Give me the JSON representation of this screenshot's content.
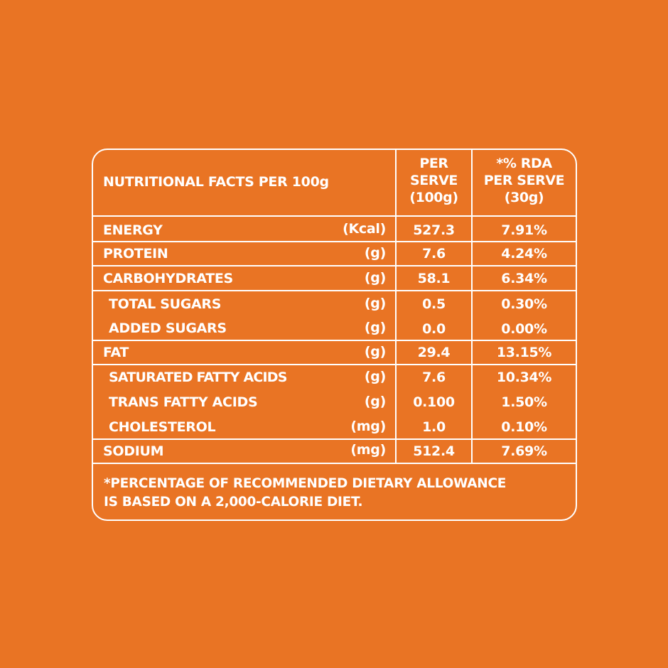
{
  "panel": {
    "header": {
      "title": "NUTRITIONAL FACTS PER 100g",
      "col_serve": [
        "PER",
        "SERVE",
        "(100g)"
      ],
      "col_rda": [
        "*% RDA",
        "PER SERVE",
        "(30g)"
      ]
    },
    "rows": [
      {
        "name": "ENERGY",
        "unit": "(Kcal)",
        "value": "527.3",
        "rda": "7.91%"
      },
      {
        "name": "PROTEIN",
        "unit": "(g)",
        "value": "7.6",
        "rda": "4.24%"
      },
      {
        "name": "CARBOHYDRATES",
        "unit": "(g)",
        "value": "58.1",
        "rda": "6.34%"
      },
      {
        "name": "TOTAL SUGARS",
        "unit": "(g)",
        "value": "0.5",
        "rda": "0.30%"
      },
      {
        "name": "ADDED SUGARS",
        "unit": "(g)",
        "value": "0.0",
        "rda": "0.00%"
      },
      {
        "name": "FAT",
        "unit": "(g)",
        "value": "29.4",
        "rda": "13.15%"
      },
      {
        "name": "SATURATED FATTY ACIDS",
        "unit": "(g)",
        "value": "7.6",
        "rda": "10.34%"
      },
      {
        "name": "TRANS FATTY ACIDS",
        "unit": "(g)",
        "value": "0.100",
        "rda": "1.50%"
      },
      {
        "name": "CHOLESTEROL",
        "unit": "(mg)",
        "value": "1.0",
        "rda": "0.10%"
      },
      {
        "name": "SODIUM",
        "unit": "(mg)",
        "value": "512.4",
        "rda": "7.69%"
      }
    ],
    "footnote": [
      "*PERCENTAGE OF RECOMMENDED DIETARY ALLOWANCE",
      "IS BASED ON A 2,000-CALORIE DIET."
    ]
  },
  "colors": {
    "background": "#E97424",
    "foreground": "#FFFFFF"
  }
}
